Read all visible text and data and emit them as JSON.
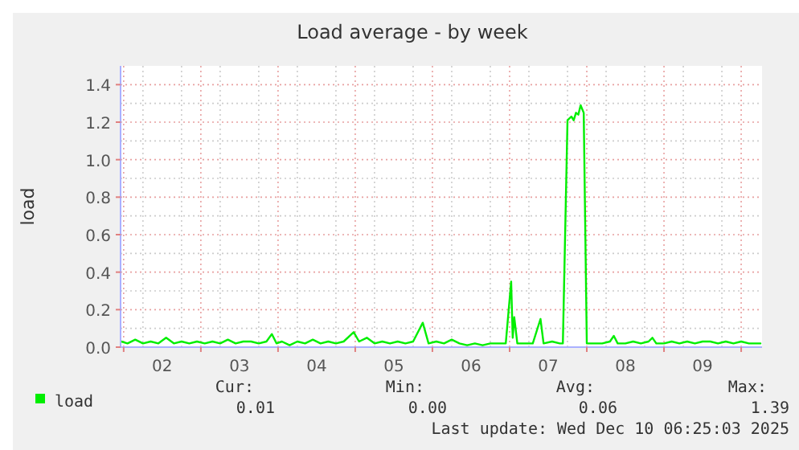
{
  "chart_data": {
    "type": "line",
    "title": "Load average - by week",
    "ylabel": "load",
    "x": [
      1.97,
      2.05,
      2.15,
      2.25,
      2.35,
      2.45,
      2.55,
      2.65,
      2.75,
      2.85,
      2.95,
      3.05,
      3.15,
      3.25,
      3.35,
      3.45,
      3.55,
      3.65,
      3.75,
      3.85,
      3.92,
      3.98,
      4.05,
      4.15,
      4.25,
      4.35,
      4.45,
      4.55,
      4.65,
      4.75,
      4.85,
      4.98,
      5.05,
      5.15,
      5.25,
      5.35,
      5.45,
      5.55,
      5.65,
      5.75,
      5.875,
      5.95,
      6.05,
      6.15,
      6.25,
      6.35,
      6.45,
      6.55,
      6.65,
      6.75,
      6.85,
      6.95,
      7.02,
      7.04,
      7.06,
      7.1,
      7.2,
      7.3,
      7.4,
      7.44,
      7.55,
      7.65,
      7.69,
      7.75,
      7.8,
      7.83,
      7.86,
      7.89,
      7.92,
      7.96,
      8.0,
      8.1,
      8.2,
      8.3,
      8.35,
      8.4,
      8.5,
      8.6,
      8.7,
      8.8,
      8.85,
      8.9,
      9.0,
      9.1,
      9.2,
      9.3,
      9.4,
      9.5,
      9.6,
      9.7,
      9.8,
      9.9,
      10.0,
      10.1,
      10.25
    ],
    "series": [
      {
        "name": "load",
        "color": "#00ee00",
        "values": [
          0.03,
          0.02,
          0.04,
          0.02,
          0.03,
          0.02,
          0.05,
          0.02,
          0.03,
          0.02,
          0.03,
          0.02,
          0.03,
          0.02,
          0.04,
          0.02,
          0.03,
          0.03,
          0.02,
          0.03,
          0.07,
          0.02,
          0.03,
          0.01,
          0.03,
          0.02,
          0.04,
          0.02,
          0.03,
          0.02,
          0.03,
          0.08,
          0.03,
          0.05,
          0.02,
          0.03,
          0.02,
          0.03,
          0.02,
          0.03,
          0.13,
          0.02,
          0.03,
          0.02,
          0.04,
          0.02,
          0.01,
          0.02,
          0.01,
          0.02,
          0.02,
          0.02,
          0.35,
          0.05,
          0.16,
          0.02,
          0.02,
          0.02,
          0.15,
          0.02,
          0.03,
          0.02,
          0.02,
          1.21,
          1.23,
          1.21,
          1.25,
          1.24,
          1.29,
          1.25,
          0.02,
          0.02,
          0.02,
          0.03,
          0.06,
          0.02,
          0.02,
          0.03,
          0.02,
          0.03,
          0.05,
          0.02,
          0.02,
          0.03,
          0.02,
          0.03,
          0.02,
          0.03,
          0.03,
          0.02,
          0.03,
          0.02,
          0.03,
          0.02,
          0.02
        ]
      }
    ],
    "xlim": [
      1.96,
      10.27
    ],
    "xticks": [
      {
        "value": 2,
        "label": null
      },
      {
        "value": 2.5,
        "label": "02"
      },
      {
        "value": 3,
        "label": null
      },
      {
        "value": 3.5,
        "label": "03"
      },
      {
        "value": 4,
        "label": null
      },
      {
        "value": 4.5,
        "label": "04"
      },
      {
        "value": 5,
        "label": null
      },
      {
        "value": 5.5,
        "label": "05"
      },
      {
        "value": 6,
        "label": null
      },
      {
        "value": 6.5,
        "label": "06"
      },
      {
        "value": 7,
        "label": null
      },
      {
        "value": 7.5,
        "label": "07"
      },
      {
        "value": 8,
        "label": null
      },
      {
        "value": 8.5,
        "label": "08"
      },
      {
        "value": 9,
        "label": null
      },
      {
        "value": 9.5,
        "label": "09"
      },
      {
        "value": 10,
        "label": null
      }
    ],
    "ylim": [
      0,
      1.5
    ],
    "yticks": [
      {
        "value": 0,
        "label": "0.0"
      },
      {
        "value": 0.2,
        "label": "0.2"
      },
      {
        "value": 0.4,
        "label": "0.4"
      },
      {
        "value": 0.6,
        "label": "0.6"
      },
      {
        "value": 0.8,
        "label": "0.8"
      },
      {
        "value": 1,
        "label": "1.0"
      },
      {
        "value": 1.2,
        "label": "1.2"
      },
      {
        "value": 1.4,
        "label": "1.4"
      }
    ],
    "grid": true,
    "legend": "bottom left",
    "marker": "none",
    "line_style": "solid",
    "annotations": [
      "Cur:",
      "Min:",
      "Avg:",
      "Max:",
      "0.01",
      "0.00",
      "0.06",
      "1.39",
      "Last update: Wed Dec 10 06:25:03 2025"
    ]
  }
}
